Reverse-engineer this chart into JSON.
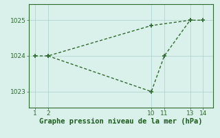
{
  "line1_x": [
    1,
    2,
    10,
    13,
    14
  ],
  "line1_y": [
    1024.0,
    1024.0,
    1024.85,
    1025.0,
    1025.0
  ],
  "line2_x": [
    2,
    10,
    11,
    13
  ],
  "line2_y": [
    1024.0,
    1023.0,
    1024.0,
    1025.0
  ],
  "line_color": "#2d6a2d",
  "marker": "+",
  "markersize": 4,
  "markeredgewidth": 1.2,
  "linewidth": 1.0,
  "linestyle": "--",
  "dashes": [
    3,
    2
  ],
  "background_color": "#daf0eb",
  "grid_color": "#a8cfc8",
  "xlabel": "Graphe pression niveau de la mer (hPa)",
  "xlabel_color": "#1a5c1a",
  "xlabel_fontsize": 7.5,
  "xticks": [
    1,
    2,
    10,
    11,
    13,
    14
  ],
  "yticks": [
    1023,
    1024,
    1025
  ],
  "xlim": [
    0.5,
    14.8
  ],
  "ylim": [
    1022.55,
    1025.45
  ],
  "tick_color": "#2d6a2d",
  "tick_fontsize": 6.5,
  "spine_color": "#2d6a2d",
  "spine_linewidth": 0.8
}
